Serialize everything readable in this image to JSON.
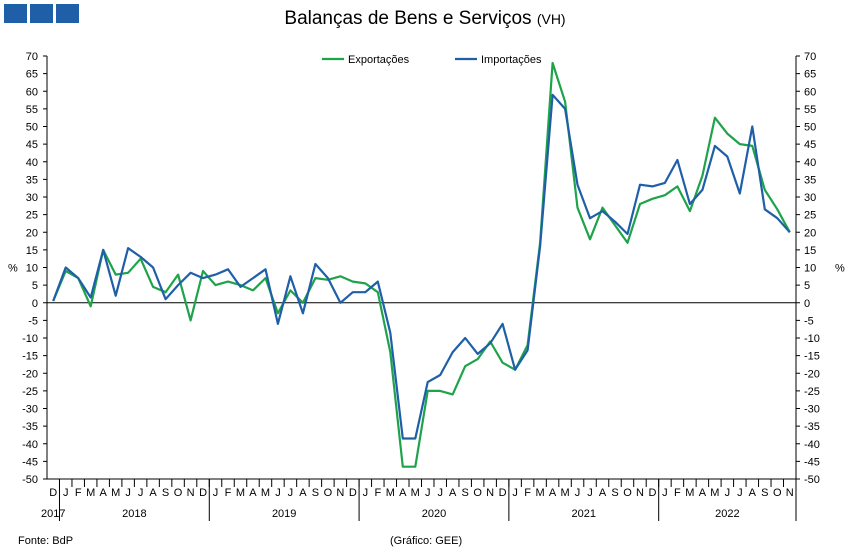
{
  "header": {
    "title": "Balanças de Bens e Serviços",
    "subtitle": "(VH)"
  },
  "footer": {
    "source": "Fonte: BdP",
    "credit": "(Gráfico: GEE)"
  },
  "logo": {
    "color": "#1f5fa8"
  },
  "chart_data": {
    "type": "line",
    "ylabel": "%",
    "ylabel_right": "%",
    "ylim": [
      -50,
      70
    ],
    "ytick_step": 5,
    "grid": false,
    "legend": "top-center",
    "months": [
      "D",
      "J",
      "F",
      "M",
      "A",
      "M",
      "J",
      "J",
      "A",
      "S",
      "O",
      "N",
      "D",
      "J",
      "F",
      "M",
      "A",
      "M",
      "J",
      "J",
      "A",
      "S",
      "O",
      "N",
      "D",
      "J",
      "F",
      "M",
      "A",
      "M",
      "J",
      "J",
      "A",
      "S",
      "O",
      "N",
      "D",
      "J",
      "F",
      "M",
      "A",
      "M",
      "J",
      "J",
      "A",
      "S",
      "O",
      "N",
      "D",
      "J",
      "F",
      "M",
      "A",
      "M",
      "J",
      "J",
      "A",
      "S",
      "O",
      "N"
    ],
    "years": [
      {
        "label": "2017",
        "start": 0,
        "end": 0
      },
      {
        "label": "2018",
        "start": 1,
        "end": 12
      },
      {
        "label": "2019",
        "start": 13,
        "end": 24
      },
      {
        "label": "2020",
        "start": 25,
        "end": 36
      },
      {
        "label": "2021",
        "start": 37,
        "end": 48
      },
      {
        "label": "2022",
        "start": 49,
        "end": 59
      }
    ],
    "series": [
      {
        "name": "Exportações",
        "color": "#1fa34a",
        "values": [
          0.5,
          9,
          7,
          -1,
          15,
          8,
          8.5,
          12.5,
          4.5,
          3,
          8,
          -5,
          9,
          5,
          6,
          5,
          3.5,
          7,
          -3,
          3.5,
          0,
          7,
          6.5,
          7.5,
          6,
          5.5,
          3,
          -14,
          -46.5,
          -46.5,
          -25,
          -25,
          -26,
          -18,
          -16,
          -11,
          -17,
          -19,
          -12,
          17,
          68,
          57,
          27,
          18,
          27,
          22,
          17,
          28,
          29.5,
          30.5,
          33,
          26,
          36,
          52.5,
          48,
          45,
          44.5,
          32,
          26.5,
          20
        ]
      },
      {
        "name": "Importações",
        "color": "#1f5fa8",
        "values": [
          0.5,
          10,
          7,
          1.5,
          15,
          2,
          15.5,
          13,
          10,
          1,
          5,
          8.5,
          7,
          8,
          9.5,
          4.5,
          7,
          9.5,
          -6,
          7.5,
          -3,
          11,
          7,
          0,
          3,
          3,
          6,
          -8.5,
          -38.5,
          -38.5,
          -22.5,
          -20.5,
          -14,
          -10,
          -14.5,
          -11.5,
          -6,
          -19,
          -13.5,
          16,
          59,
          55,
          33.5,
          24,
          26,
          23,
          19.5,
          33.5,
          33,
          34,
          40.5,
          28,
          32,
          44.5,
          41.5,
          31,
          50,
          26.5,
          24,
          20
        ]
      }
    ]
  }
}
